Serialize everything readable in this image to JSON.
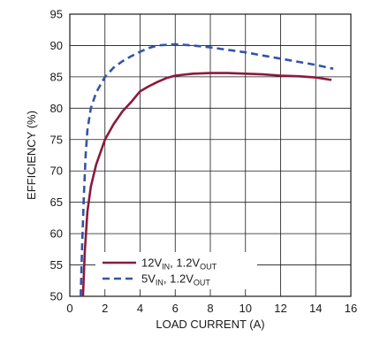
{
  "chart_data": {
    "type": "line",
    "title": "",
    "xlabel": "LOAD CURRENT (A)",
    "ylabel": "EFFICIENCY (%)",
    "xlim": [
      0,
      16
    ],
    "ylim": [
      50,
      95
    ],
    "xticks": [
      "0",
      "2",
      "4",
      "6",
      "8",
      "10",
      "12",
      "14",
      "16"
    ],
    "yticks": [
      "50",
      "55",
      "60",
      "65",
      "70",
      "75",
      "80",
      "85",
      "90",
      "95"
    ],
    "grid": true,
    "legend_placement": "bottom-center",
    "series": [
      {
        "name": "12V_IN, 1.2V_OUT",
        "legend": {
          "v1": "12V",
          "sub1": "IN",
          "mid": ", 1.2V",
          "sub2": "OUT"
        },
        "style": "solid",
        "color": "#8b1a3c",
        "x": [
          0.75,
          0.85,
          1.0,
          1.2,
          1.5,
          2.0,
          2.5,
          3.0,
          3.5,
          4.0,
          4.5,
          5.0,
          5.5,
          6.0,
          7.0,
          8.0,
          9.0,
          10.0,
          11.0,
          12.0,
          13.0,
          14.0,
          14.9
        ],
        "y": [
          50.0,
          57.0,
          63.5,
          67.5,
          71.0,
          75.0,
          77.5,
          79.5,
          81.0,
          82.7,
          83.5,
          84.2,
          84.8,
          85.2,
          85.5,
          85.6,
          85.6,
          85.5,
          85.4,
          85.2,
          85.1,
          84.9,
          84.5
        ]
      },
      {
        "name": "5V_IN, 1.2V_OUT",
        "legend": {
          "v1": "5V",
          "sub1": "IN",
          "mid": ", 1.2V",
          "sub2": "OUT"
        },
        "style": "dashed",
        "color": "#3355a5",
        "x": [
          0.62,
          0.7,
          0.8,
          0.9,
          1.0,
          1.2,
          1.5,
          2.0,
          2.5,
          3.0,
          3.5,
          4.0,
          4.5,
          5.0,
          5.5,
          6.0,
          7.0,
          8.0,
          9.0,
          10.0,
          11.0,
          12.0,
          13.0,
          14.0,
          15.0
        ],
        "y": [
          50.0,
          58.0,
          66.0,
          72.5,
          76.5,
          80.0,
          82.5,
          85.0,
          86.5,
          87.5,
          88.3,
          89.0,
          89.6,
          90.0,
          90.1,
          90.2,
          90.0,
          89.7,
          89.3,
          88.9,
          88.4,
          87.9,
          87.4,
          86.9,
          86.3
        ]
      }
    ]
  }
}
